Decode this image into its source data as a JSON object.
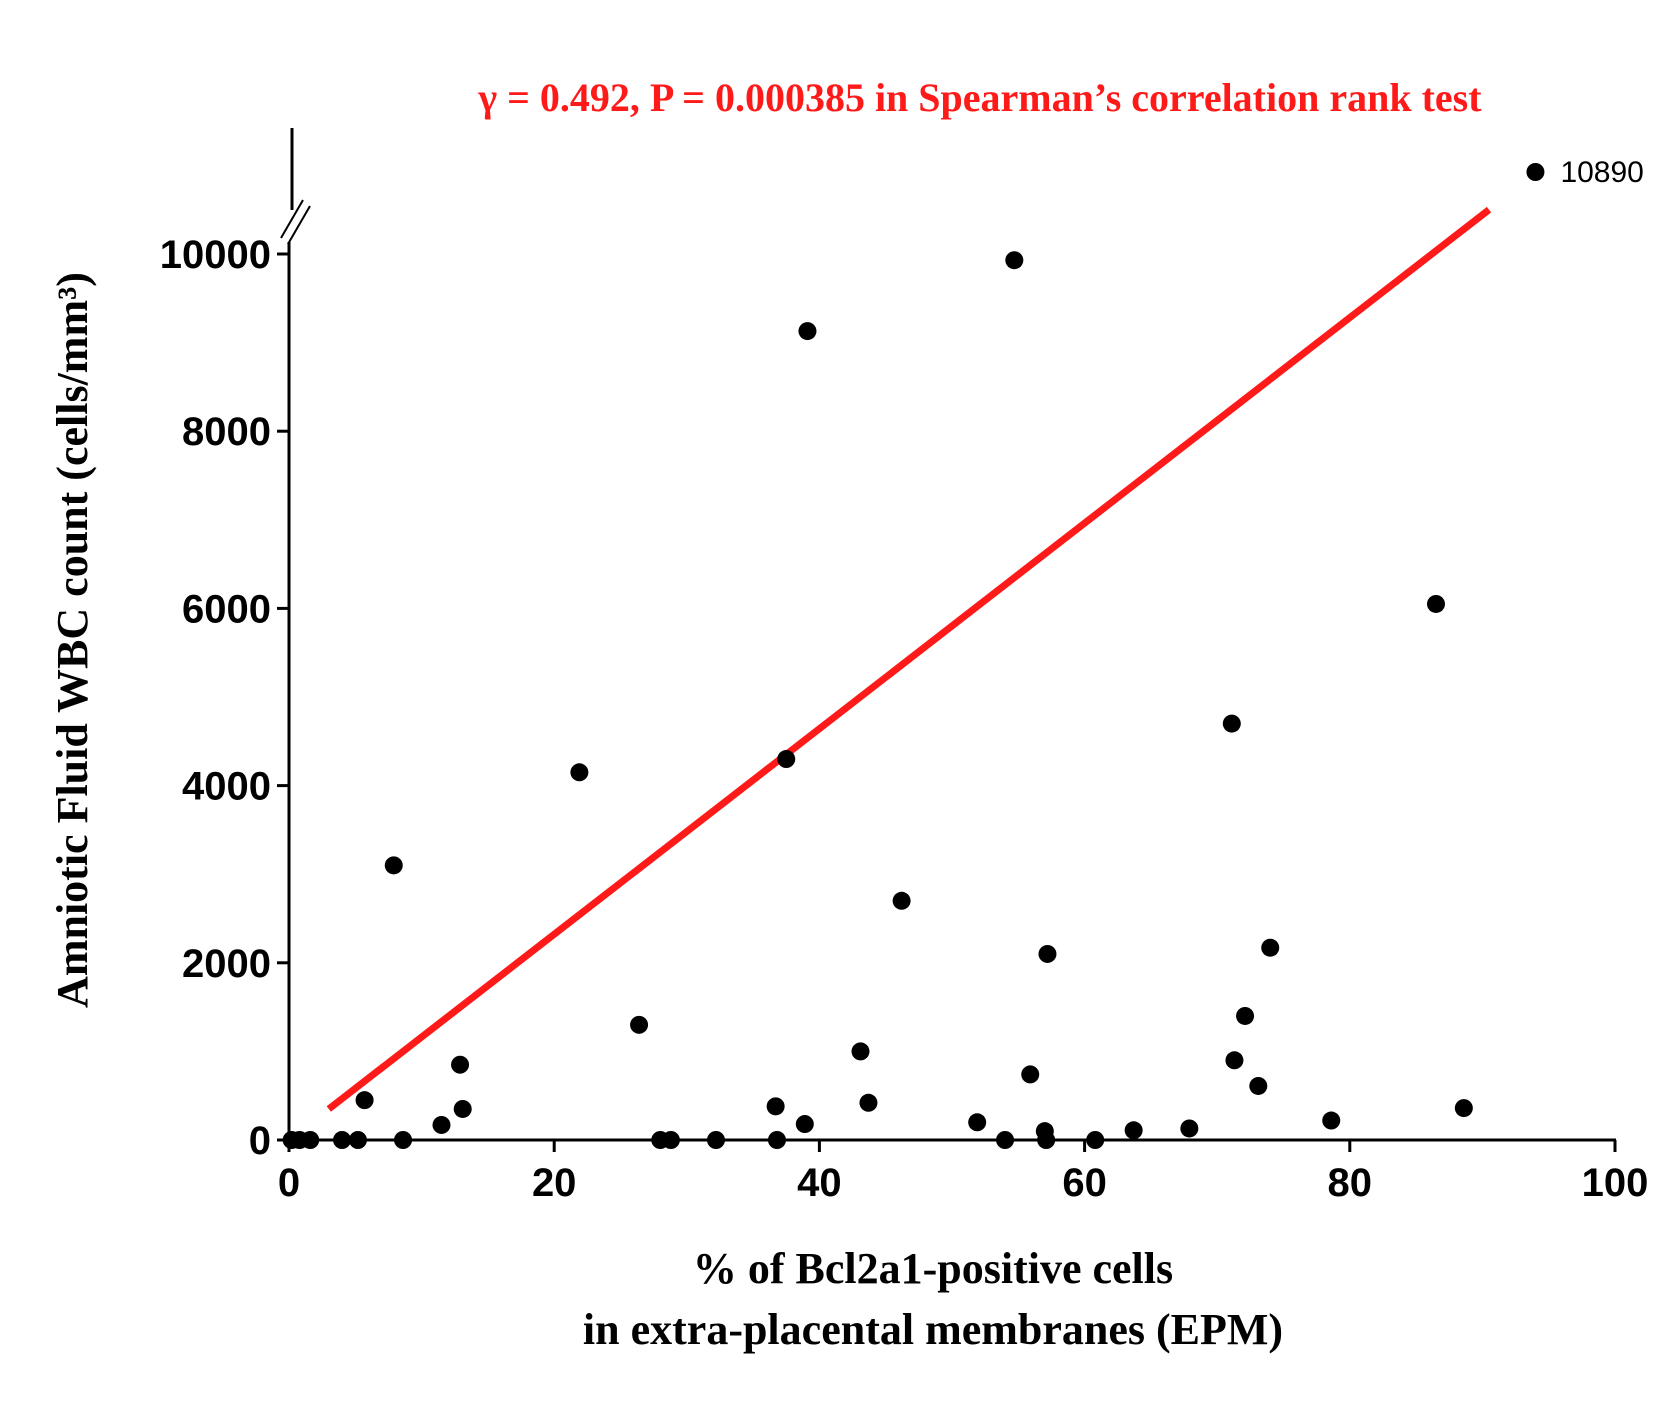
{
  "chart_data": {
    "type": "scatter",
    "title": "γ = 0.492, P = 0.000385 in Spearman’s correlation rank test",
    "xlabel_line1": "% of Bcl2a1-positive cells",
    "xlabel_line2": "in extra-placental membranes (EPM)",
    "ylabel": "Amniotic Fluid WBC count (cells/mm³)",
    "xlim": [
      0,
      100
    ],
    "ylim": [
      0,
      10000
    ],
    "x_ticks": [
      0,
      20,
      40,
      60,
      80,
      100
    ],
    "y_ticks": [
      0,
      2000,
      4000,
      6000,
      8000,
      10000
    ],
    "axis_break": true,
    "grid": false,
    "colors": {
      "points": "#000000",
      "trend_line": "#ff1a1a",
      "title": "#ff1a1a"
    },
    "trend_line": {
      "x": [
        3,
        90.5
      ],
      "y": [
        350,
        10500
      ]
    },
    "outlier": {
      "x": 94,
      "y": 10890,
      "label": "10890"
    },
    "points": [
      {
        "x": 0.2,
        "y": 0
      },
      {
        "x": 0.8,
        "y": 0
      },
      {
        "x": 1.6,
        "y": 0
      },
      {
        "x": 4,
        "y": 0
      },
      {
        "x": 5.2,
        "y": 0
      },
      {
        "x": 5.7,
        "y": 450
      },
      {
        "x": 7.9,
        "y": 3100
      },
      {
        "x": 8.6,
        "y": 0
      },
      {
        "x": 11.5,
        "y": 170
      },
      {
        "x": 12.9,
        "y": 850
      },
      {
        "x": 13.1,
        "y": 350
      },
      {
        "x": 21.9,
        "y": 4150
      },
      {
        "x": 26.4,
        "y": 1300
      },
      {
        "x": 28,
        "y": 0
      },
      {
        "x": 28.8,
        "y": 0
      },
      {
        "x": 32.2,
        "y": 0
      },
      {
        "x": 36.7,
        "y": 380
      },
      {
        "x": 36.8,
        "y": 0
      },
      {
        "x": 37.5,
        "y": 4300
      },
      {
        "x": 38.9,
        "y": 180
      },
      {
        "x": 39.1,
        "y": 9130
      },
      {
        "x": 43.1,
        "y": 1000
      },
      {
        "x": 43.7,
        "y": 420
      },
      {
        "x": 46.2,
        "y": 2700
      },
      {
        "x": 51.9,
        "y": 200
      },
      {
        "x": 54,
        "y": 0
      },
      {
        "x": 54.7,
        "y": 9930
      },
      {
        "x": 55.9,
        "y": 740
      },
      {
        "x": 57,
        "y": 100
      },
      {
        "x": 57.1,
        "y": 0
      },
      {
        "x": 57.2,
        "y": 2100
      },
      {
        "x": 60.8,
        "y": 0
      },
      {
        "x": 63.7,
        "y": 110
      },
      {
        "x": 67.9,
        "y": 130
      },
      {
        "x": 71.1,
        "y": 4700
      },
      {
        "x": 71.3,
        "y": 900
      },
      {
        "x": 72.1,
        "y": 1400
      },
      {
        "x": 73.1,
        "y": 610
      },
      {
        "x": 74,
        "y": 2170
      },
      {
        "x": 78.6,
        "y": 220
      },
      {
        "x": 86.5,
        "y": 6050
      },
      {
        "x": 88.6,
        "y": 360
      }
    ]
  }
}
